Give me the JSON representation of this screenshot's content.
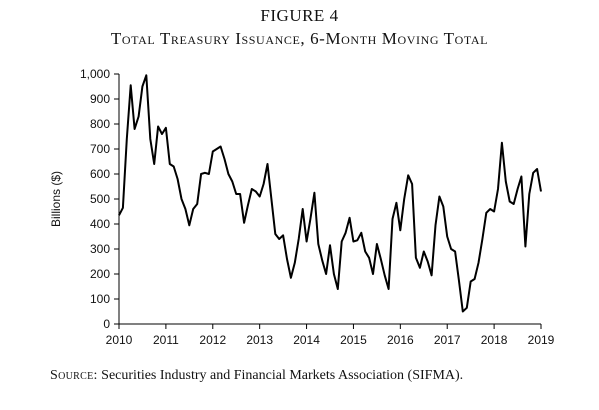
{
  "figure": {
    "label": "FIGURE 4",
    "title": "Total Treasury Issuance, 6-Month Moving Total",
    "source_label": "Source:",
    "source_text": " Securities Industry and Financial Markets Association (SIFMA)."
  },
  "colors": {
    "line": "#000000",
    "axis": "#000000",
    "text": "#111111"
  },
  "chart_data": {
    "type": "line",
    "title": "Total Treasury Issuance, 6-Month Moving Total",
    "xlabel": "",
    "ylabel": "Billions ($)",
    "xlim": [
      2010,
      2019
    ],
    "ylim": [
      0,
      1000
    ],
    "grid": false,
    "x_ticks": [
      2010,
      2011,
      2012,
      2013,
      2014,
      2015,
      2016,
      2017,
      2018,
      2019
    ],
    "x_tick_labels": [
      "2010",
      "2011",
      "2012",
      "2013",
      "2014",
      "2015",
      "2016",
      "2017",
      "2018",
      "2019"
    ],
    "y_ticks": [
      0,
      100,
      200,
      300,
      400,
      500,
      600,
      700,
      800,
      900,
      1000
    ],
    "y_tick_labels": [
      "0",
      "100",
      "200",
      "300",
      "400",
      "500",
      "600",
      "700",
      "800",
      "900",
      "1,000"
    ],
    "series": [
      {
        "x": [
          2010.0,
          2010.083,
          2010.167,
          2010.25,
          2010.333,
          2010.417,
          2010.5,
          2010.583,
          2010.667,
          2010.75,
          2010.833,
          2010.917,
          2011.0,
          2011.083,
          2011.167,
          2011.25,
          2011.333,
          2011.417,
          2011.5,
          2011.583,
          2011.667,
          2011.75,
          2011.833,
          2011.917,
          2012.0,
          2012.083,
          2012.167,
          2012.25,
          2012.333,
          2012.417,
          2012.5,
          2012.583,
          2012.667,
          2012.75,
          2012.833,
          2012.917,
          2013.0,
          2013.083,
          2013.167,
          2013.25,
          2013.333,
          2013.417,
          2013.5,
          2013.583,
          2013.667,
          2013.75,
          2013.833,
          2013.917,
          2014.0,
          2014.083,
          2014.167,
          2014.25,
          2014.333,
          2014.417,
          2014.5,
          2014.583,
          2014.667,
          2014.75,
          2014.833,
          2014.917,
          2015.0,
          2015.083,
          2015.167,
          2015.25,
          2015.333,
          2015.417,
          2015.5,
          2015.583,
          2015.667,
          2015.75,
          2015.833,
          2015.917,
          2016.0,
          2016.083,
          2016.167,
          2016.25,
          2016.333,
          2016.417,
          2016.5,
          2016.583,
          2016.667,
          2016.75,
          2016.833,
          2016.917,
          2017.0,
          2017.083,
          2017.167,
          2017.25,
          2017.333,
          2017.417,
          2017.5,
          2017.583,
          2017.667,
          2017.75,
          2017.833,
          2017.917,
          2018.0,
          2018.083,
          2018.167,
          2018.25,
          2018.333,
          2018.417,
          2018.5,
          2018.583,
          2018.667,
          2018.75,
          2018.833,
          2018.917,
          2019.0
        ],
        "y": [
          435,
          465,
          740,
          955,
          780,
          830,
          950,
          995,
          740,
          640,
          790,
          760,
          785,
          640,
          630,
          580,
          500,
          460,
          395,
          460,
          480,
          600,
          605,
          600,
          690,
          700,
          710,
          660,
          600,
          570,
          520,
          520,
          405,
          475,
          540,
          530,
          510,
          560,
          640,
          500,
          360,
          340,
          355,
          260,
          185,
          245,
          340,
          460,
          330,
          420,
          525,
          320,
          255,
          200,
          315,
          200,
          140,
          330,
          365,
          425,
          330,
          335,
          365,
          290,
          265,
          200,
          320,
          260,
          195,
          140,
          420,
          485,
          375,
          500,
          595,
          560,
          265,
          225,
          290,
          250,
          195,
          395,
          510,
          470,
          350,
          300,
          290,
          175,
          50,
          65,
          170,
          180,
          245,
          340,
          445,
          460,
          450,
          540,
          725,
          570,
          490,
          480,
          540,
          590,
          310,
          520,
          605,
          620,
          530
        ]
      }
    ]
  }
}
